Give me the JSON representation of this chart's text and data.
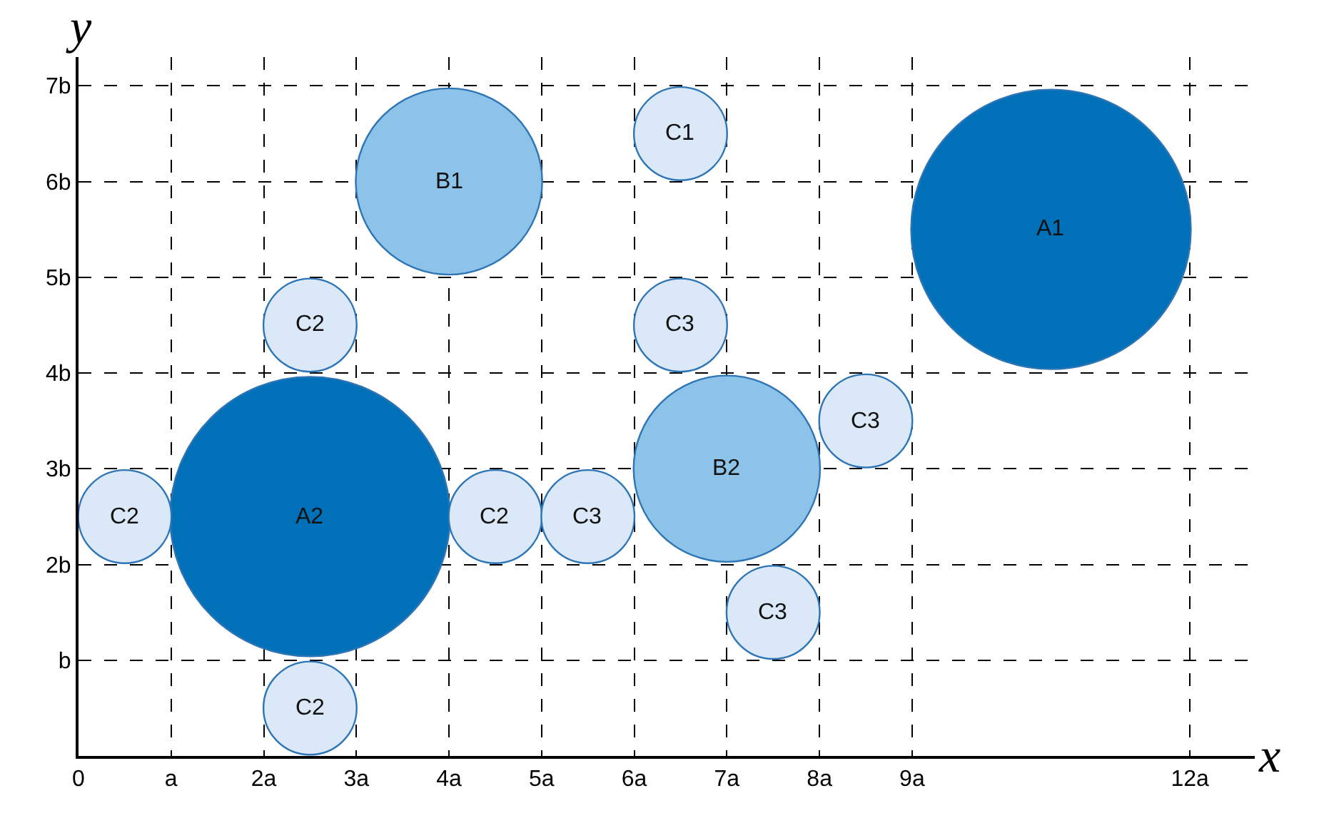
{
  "chart_data": {
    "type": "bubble",
    "xlabel": "x",
    "ylabel": "y",
    "xlim": [
      0,
      12.7
    ],
    "ylim": [
      0,
      7.3
    ],
    "xticks": [
      0,
      {
        "value": 1,
        "label": "a"
      },
      {
        "value": 2,
        "label": "2a"
      },
      {
        "value": 3,
        "label": "3a"
      },
      {
        "value": 4,
        "label": "4a"
      },
      {
        "value": 5,
        "label": "5a"
      },
      {
        "value": 6,
        "label": "6a"
      },
      {
        "value": 7,
        "label": "7a"
      },
      {
        "value": 8,
        "label": "8a"
      },
      {
        "value": 9,
        "label": "9a"
      },
      {
        "value": 12,
        "label": "12a"
      }
    ],
    "yticks": [
      {
        "value": 1,
        "label": "b"
      },
      {
        "value": 2,
        "label": "2b"
      },
      {
        "value": 3,
        "label": "3b"
      },
      {
        "value": 4,
        "label": "4b"
      },
      {
        "value": 5,
        "label": "5b"
      },
      {
        "value": 6,
        "label": "6b"
      },
      {
        "value": 7,
        "label": "7b"
      }
    ],
    "grid": true,
    "series": [
      {
        "color": "#0070b8",
        "x": [
          10.5,
          2.5
        ],
        "values": [
          5.5,
          2.5
        ],
        "sizes": [
          1,
          1
        ]
      },
      {
        "color": "#8dc3e8",
        "x": [
          4,
          7
        ],
        "values": [
          6,
          3
        ],
        "sizes": [
          0.444,
          0.444
        ]
      },
      {
        "color": "#dae8f7",
        "x": [
          6.5,
          2.5,
          0.5,
          4.5,
          2.5,
          6.5,
          5.5,
          8.5,
          7.5
        ],
        "values": [
          6.5,
          4.5,
          2.5,
          2.5,
          0.5,
          4.5,
          2.5,
          3.5,
          1.5
        ],
        "sizes": [
          0.111,
          0.111,
          0.111,
          0.111,
          0.111,
          0.111,
          0.111,
          0.111,
          0.111
        ]
      }
    ],
    "annotations": [
      {
        "text": "A1",
        "x": 10.5,
        "y": 5.5
      },
      {
        "text": "A2",
        "x": 2.5,
        "y": 2.5
      },
      {
        "text": "B1",
        "x": 4,
        "y": 6
      },
      {
        "text": "B2",
        "x": 7,
        "y": 3
      },
      {
        "text": "C1",
        "x": 6.5,
        "y": 6.5
      },
      {
        "text": "C2",
        "x": 2.5,
        "y": 4.5
      },
      {
        "text": "C2",
        "x": 0.5,
        "y": 2.5
      },
      {
        "text": "C2",
        "x": 4.5,
        "y": 2.5
      },
      {
        "text": "C2",
        "x": 2.5,
        "y": 0.5
      },
      {
        "text": "C3",
        "x": 6.5,
        "y": 4.5
      },
      {
        "text": "C3",
        "x": 5.5,
        "y": 2.5
      },
      {
        "text": "C3",
        "x": 8.5,
        "y": 3.5
      },
      {
        "text": "C3",
        "x": 7.5,
        "y": 1.5
      }
    ]
  }
}
